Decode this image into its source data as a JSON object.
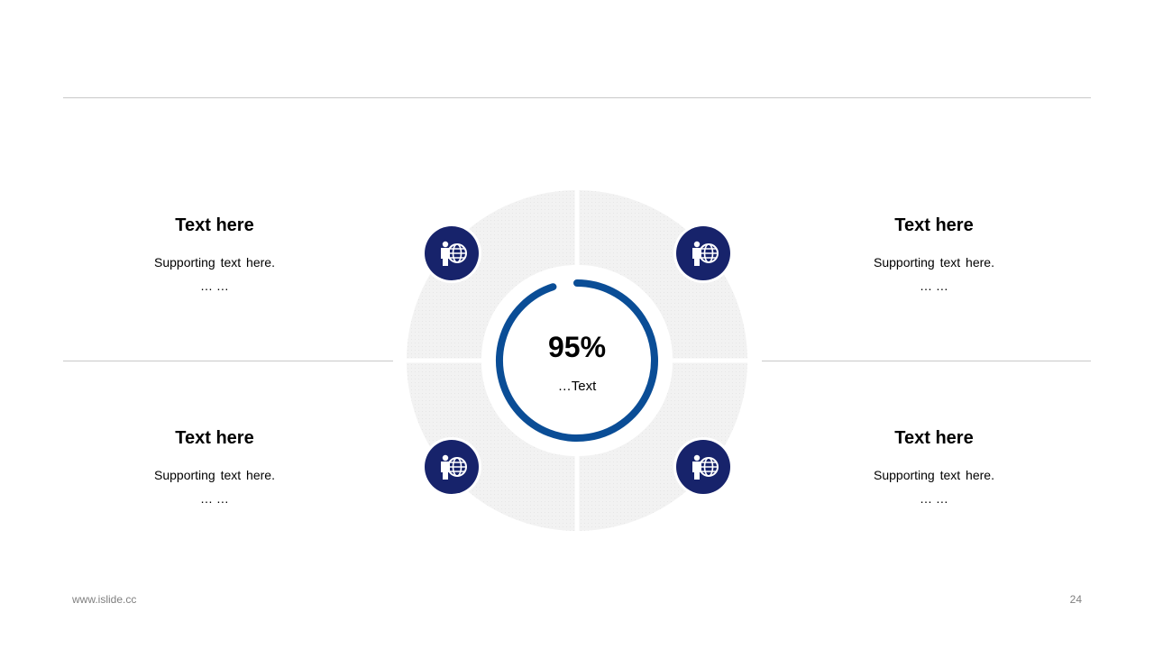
{
  "quadrants": [
    {
      "title": "Text here",
      "subtitle": "Supporting  text here.",
      "dots": "… …"
    },
    {
      "title": "Text here",
      "subtitle": "Supporting  text here.",
      "dots": "… …"
    },
    {
      "title": "Text here",
      "subtitle": "Supporting  text here.",
      "dots": "… …"
    },
    {
      "title": "Text here",
      "subtitle": "Supporting  text here.",
      "dots": "… …"
    }
  ],
  "center": {
    "value": "95%",
    "label": "…Text",
    "progress": 0.95
  },
  "icon": "person-globe-icon",
  "footer": {
    "website": "www.islide.cc",
    "page_number": "24"
  },
  "colors": {
    "accent": "#0a4d96",
    "icon_bg": "#17236b",
    "ring": "#efefef",
    "line": "#c8c8c8"
  }
}
